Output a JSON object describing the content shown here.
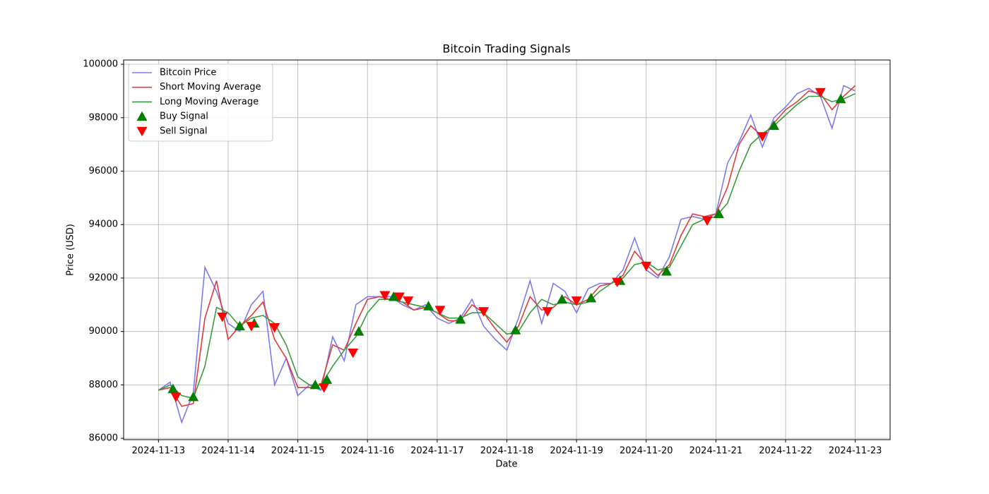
{
  "chart_data": {
    "type": "line",
    "title": "Bitcoin Trading Signals",
    "xlabel": "Date",
    "ylabel": "Price (USD)",
    "x": [
      "2024-11-13T00:00",
      "2024-11-13T04:00",
      "2024-11-13T08:00",
      "2024-11-13T12:00",
      "2024-11-13T16:00",
      "2024-11-13T20:00",
      "2024-11-14T00:00",
      "2024-11-14T04:00",
      "2024-11-14T08:00",
      "2024-11-14T12:00",
      "2024-11-14T16:00",
      "2024-11-14T20:00",
      "2024-11-15T00:00",
      "2024-11-15T04:00",
      "2024-11-15T08:00",
      "2024-11-15T12:00",
      "2024-11-15T16:00",
      "2024-11-15T20:00",
      "2024-11-16T00:00",
      "2024-11-16T04:00",
      "2024-11-16T08:00",
      "2024-11-16T12:00",
      "2024-11-16T16:00",
      "2024-11-16T20:00",
      "2024-11-17T00:00",
      "2024-11-17T04:00",
      "2024-11-17T08:00",
      "2024-11-17T12:00",
      "2024-11-17T16:00",
      "2024-11-17T20:00",
      "2024-11-18T00:00",
      "2024-11-18T04:00",
      "2024-11-18T08:00",
      "2024-11-18T12:00",
      "2024-11-18T16:00",
      "2024-11-18T20:00",
      "2024-11-19T00:00",
      "2024-11-19T04:00",
      "2024-11-19T08:00",
      "2024-11-19T12:00",
      "2024-11-19T16:00",
      "2024-11-19T20:00",
      "2024-11-20T00:00",
      "2024-11-20T04:00",
      "2024-11-20T08:00",
      "2024-11-20T12:00",
      "2024-11-20T16:00",
      "2024-11-20T20:00",
      "2024-11-21T00:00",
      "2024-11-21T04:00",
      "2024-11-21T08:00",
      "2024-11-21T12:00",
      "2024-11-21T16:00",
      "2024-11-21T20:00",
      "2024-11-22T00:00",
      "2024-11-22T04:00",
      "2024-11-22T08:00",
      "2024-11-22T12:00",
      "2024-11-22T16:00",
      "2024-11-22T20:00",
      "2024-11-23T00:00"
    ],
    "series": [
      {
        "name": "Bitcoin Price",
        "color": "#7b7bef",
        "values": [
          87800,
          88100,
          86600,
          87700,
          92400,
          91500,
          90300,
          90000,
          91000,
          91500,
          88000,
          89000,
          87600,
          88000,
          87800,
          89800,
          88900,
          91000,
          91300,
          91300,
          91300,
          91000,
          90800,
          91000,
          90500,
          90300,
          90500,
          91200,
          90200,
          89700,
          89300,
          90500,
          91900,
          90300,
          91800,
          91500,
          90700,
          91600,
          91800,
          91800,
          92300,
          93500,
          92300,
          92000,
          92800,
          94200,
          94300,
          94200,
          94400,
          96300,
          97100,
          98100,
          96900,
          98000,
          98400,
          98900,
          99100,
          98800,
          97600,
          99200,
          99000
        ]
      },
      {
        "name": "Short Moving Average",
        "color": "#e03c3c",
        "values": [
          87800,
          87900,
          87200,
          87300,
          90500,
          91900,
          89700,
          90200,
          90600,
          91100,
          89700,
          89000,
          87900,
          87900,
          88000,
          89500,
          89300,
          90300,
          91200,
          91300,
          91200,
          91100,
          90800,
          90900,
          90700,
          90400,
          90400,
          91000,
          90700,
          90100,
          89600,
          90200,
          91300,
          90800,
          90900,
          91300,
          91000,
          91200,
          91700,
          91800,
          92100,
          93000,
          92500,
          92100,
          92500,
          93600,
          94400,
          94300,
          94400,
          95400,
          97000,
          97700,
          97300,
          97800,
          98300,
          98600,
          99000,
          98900,
          98300,
          98800,
          99200
        ]
      },
      {
        "name": "Long Moving Average",
        "color": "#3d9a3d",
        "values": [
          87800,
          88000,
          87600,
          87500,
          88700,
          90900,
          90700,
          90200,
          90500,
          90600,
          90300,
          89500,
          88300,
          88000,
          88000,
          88700,
          89300,
          89800,
          90700,
          91200,
          91200,
          91100,
          91000,
          90900,
          90700,
          90500,
          90500,
          90700,
          90700,
          90300,
          89900,
          90000,
          90700,
          91200,
          91000,
          91100,
          91000,
          91100,
          91500,
          91800,
          92000,
          92500,
          92600,
          92300,
          92400,
          93200,
          94000,
          94200,
          94300,
          94800,
          96000,
          97000,
          97400,
          97700,
          98100,
          98500,
          98800,
          98800,
          98600,
          98700,
          98900
        ]
      },
      {
        "name": "Buy Signal",
        "color": "#008000",
        "marker": "^",
        "x": [
          "2024-11-13T05:00",
          "2024-11-13T12:00",
          "2024-11-14T04:00",
          "2024-11-14T09:00",
          "2024-11-15T06:00",
          "2024-11-15T10:00",
          "2024-11-15T21:00",
          "2024-11-16T09:00",
          "2024-11-16T21:00",
          "2024-11-17T08:00",
          "2024-11-18T03:00",
          "2024-11-18T19:00",
          "2024-11-19T05:00",
          "2024-11-19T15:00",
          "2024-11-20T07:00",
          "2024-11-21T01:00",
          "2024-11-21T20:00",
          "2024-11-22T19:00"
        ],
        "values": [
          87850,
          87550,
          90200,
          90300,
          88000,
          88200,
          90000,
          91300,
          90950,
          90450,
          90050,
          91200,
          91250,
          91900,
          92250,
          94400,
          97700,
          98700
        ]
      },
      {
        "name": "Sell Signal",
        "color": "#ff0000",
        "marker": "v",
        "x": [
          "2024-11-13T06:00",
          "2024-11-13T22:00",
          "2024-11-14T08:00",
          "2024-11-14T16:00",
          "2024-11-15T09:00",
          "2024-11-15T19:00",
          "2024-11-16T06:00",
          "2024-11-16T11:00",
          "2024-11-16T14:00",
          "2024-11-17T01:00",
          "2024-11-17T16:00",
          "2024-11-18T14:00",
          "2024-11-19T00:00",
          "2024-11-19T14:00",
          "2024-11-20T00:00",
          "2024-11-20T21:00",
          "2024-11-21T16:00",
          "2024-11-22T12:00"
        ],
        "values": [
          87550,
          90550,
          90200,
          90150,
          87900,
          89200,
          91350,
          91300,
          91150,
          90800,
          90750,
          90750,
          91150,
          91850,
          92450,
          94150,
          97300,
          98950
        ]
      }
    ],
    "xlim": [
      "2024-11-12T12:00",
      "2024-11-23T12:00"
    ],
    "xticks": [
      "2024-11-13",
      "2024-11-14",
      "2024-11-15",
      "2024-11-16",
      "2024-11-17",
      "2024-11-18",
      "2024-11-19",
      "2024-11-20",
      "2024-11-21",
      "2024-11-22",
      "2024-11-23"
    ],
    "ylim": [
      85950,
      100160
    ],
    "yticks": [
      86000,
      88000,
      90000,
      92000,
      94000,
      96000,
      98000,
      100000
    ],
    "grid": true,
    "legend": "upper left"
  }
}
